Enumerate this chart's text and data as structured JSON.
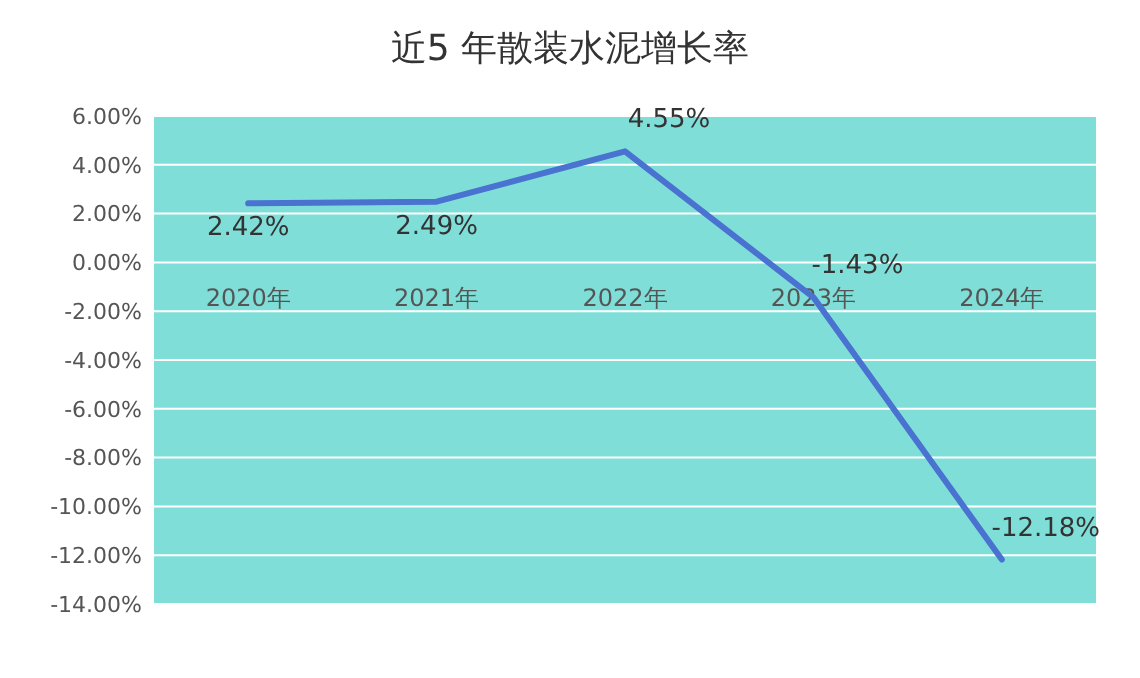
{
  "chart_data": {
    "type": "line",
    "title": "近5 年散装水泥增长率",
    "categories": [
      "2020年",
      "2021年",
      "2022年",
      "2023年",
      "2024年"
    ],
    "series": [
      {
        "color": "#4a72d0",
        "values": [
          2.42,
          2.49,
          4.55,
          -1.43,
          -12.18
        ]
      }
    ],
    "value_labels": [
      "2.42%",
      "2.49%",
      "4.55%",
      "-1.43%",
      "-12.18%"
    ],
    "ylim": [
      -14,
      6
    ],
    "yticks": [
      {
        "value": -14,
        "label": "-14.00%"
      },
      {
        "value": -12,
        "label": "-12.00%"
      },
      {
        "value": -10,
        "label": "-10.00%"
      },
      {
        "value": -8,
        "label": "-8.00%"
      },
      {
        "value": -6,
        "label": "-6.00%"
      },
      {
        "value": -4,
        "label": "-4.00%"
      },
      {
        "value": -2,
        "label": "-2.00%"
      },
      {
        "value": 0,
        "label": "0.00%"
      },
      {
        "value": 2,
        "label": "2.00%"
      },
      {
        "value": 4,
        "label": "4.00%"
      },
      {
        "value": 6,
        "label": "6.00%"
      }
    ],
    "grid": "y",
    "marker": "none",
    "line_style": "solid"
  }
}
